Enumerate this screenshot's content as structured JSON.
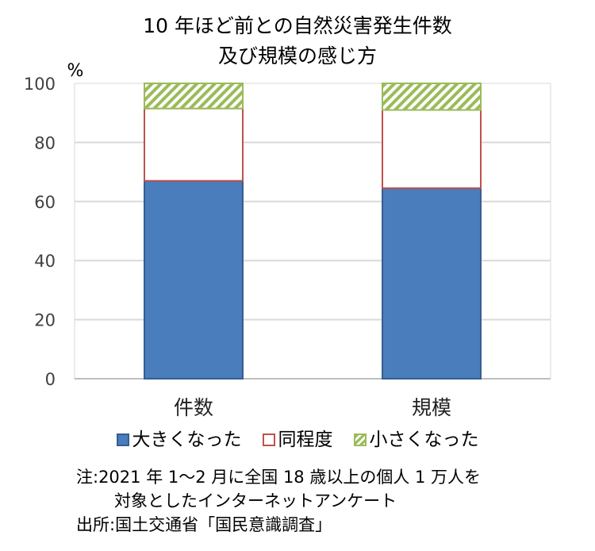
{
  "title_line1": "10 年ほど前との自然災害発生件数",
  "title_line2": "及び規模の感じ方",
  "chart_data": {
    "type": "bar",
    "stacked": true,
    "categories": [
      "件数",
      "規模"
    ],
    "series": [
      {
        "name": "大きくなった",
        "values": [
          67,
          64.5
        ],
        "color": "#4a7dbb"
      },
      {
        "name": "同程度",
        "values": [
          24.5,
          26.5
        ],
        "color": "#ffffff"
      },
      {
        "name": "小さくなった",
        "values": [
          8.5,
          9
        ],
        "color": "#9bbb59"
      }
    ],
    "ylabel": "%",
    "ylim": [
      0,
      100
    ],
    "yticks": [
      0,
      20,
      40,
      60,
      80,
      100
    ],
    "grid": true,
    "legend_position": "bottom"
  },
  "legend": {
    "large": "大きくなった",
    "same": "同程度",
    "small": "小さくなった"
  },
  "notes": {
    "line1": "注:2021 年 1～2 月に全国 18 歳以上の個人 1 万人を",
    "line2": "対象としたインターネットアンケート",
    "line3": "出所:国土交通省「国民意識調査」"
  }
}
